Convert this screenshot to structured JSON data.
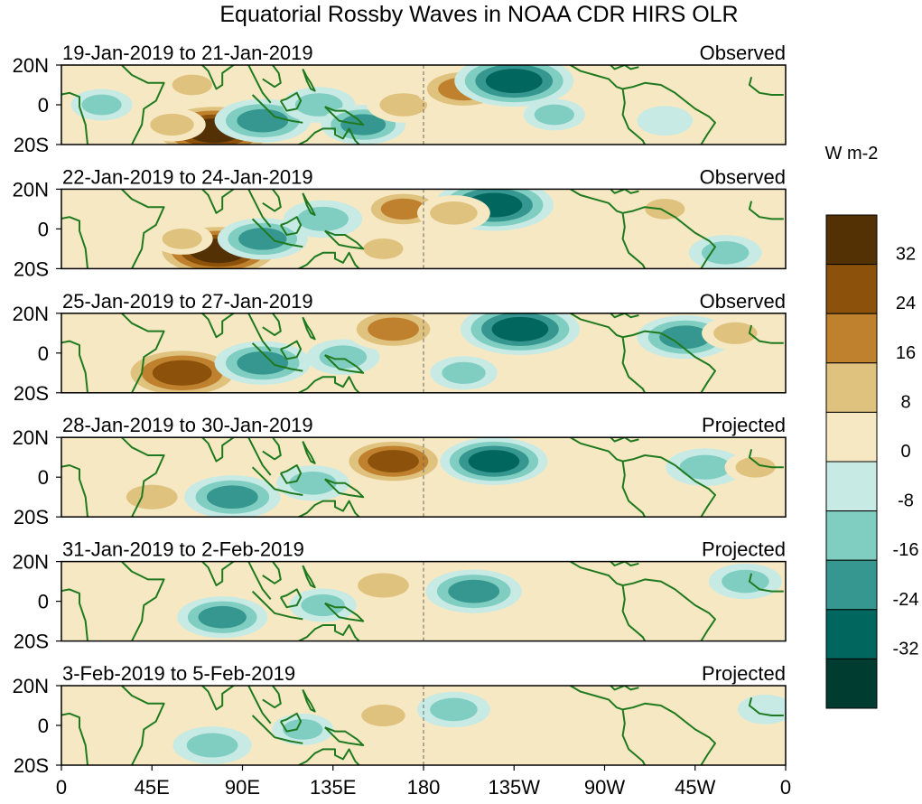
{
  "chart_data": {
    "type": "heatmap",
    "title": "Equatorial Rossby Waves in NOAA CDR HIRS OLR",
    "colorbar_label": "W m-2",
    "x_ticks": [
      "0",
      "45E",
      "90E",
      "135E",
      "180",
      "135W",
      "90W",
      "45W",
      "0"
    ],
    "x_range_deg": [
      0,
      360
    ],
    "y_ticks": [
      "20N",
      "0",
      "20S"
    ],
    "y_range_deg": [
      -20,
      20
    ],
    "reference_line_lon": 180,
    "colorbar": {
      "labels": [
        "32",
        "24",
        "16",
        "8",
        "0",
        "-8",
        "-16",
        "-24",
        "-32"
      ],
      "levels": [
        32,
        24,
        16,
        8,
        0,
        -8,
        -16,
        -24,
        -32
      ],
      "colors": [
        "#543005",
        "#8c510a",
        "#bf812d",
        "#dfc27d",
        "#f6e8c3",
        "#c7eae5",
        "#80cdc1",
        "#35978f",
        "#01665e",
        "#003c30"
      ]
    },
    "panels": [
      {
        "date_range": "19-Jan-2019 to 21-Jan-2019",
        "status": "Observed",
        "anomalies": [
          {
            "lon": 76,
            "lat": -13,
            "value": 34
          },
          {
            "lon": 55,
            "lat": -10,
            "value": 12
          },
          {
            "lon": 65,
            "lat": 10,
            "value": 10
          },
          {
            "lon": 100,
            "lat": -8,
            "value": -22
          },
          {
            "lon": 128,
            "lat": 0,
            "value": -14
          },
          {
            "lon": 150,
            "lat": -10,
            "value": -18
          },
          {
            "lon": 170,
            "lat": 0,
            "value": 14
          },
          {
            "lon": 200,
            "lat": 8,
            "value": 22
          },
          {
            "lon": 225,
            "lat": 12,
            "value": -30
          },
          {
            "lon": 245,
            "lat": -5,
            "value": -10
          },
          {
            "lon": 300,
            "lat": -8,
            "value": -8
          },
          {
            "lon": 20,
            "lat": 0,
            "value": -10
          }
        ]
      },
      {
        "date_range": "22-Jan-2019 to 24-Jan-2019",
        "status": "Observed",
        "anomalies": [
          {
            "lon": 78,
            "lat": -11,
            "value": 34
          },
          {
            "lon": 60,
            "lat": -5,
            "value": 10
          },
          {
            "lon": 100,
            "lat": -5,
            "value": -20
          },
          {
            "lon": 130,
            "lat": 5,
            "value": -16
          },
          {
            "lon": 170,
            "lat": 10,
            "value": 18
          },
          {
            "lon": 160,
            "lat": -10,
            "value": 10
          },
          {
            "lon": 215,
            "lat": 12,
            "value": -30
          },
          {
            "lon": 195,
            "lat": 8,
            "value": 14
          },
          {
            "lon": 300,
            "lat": 10,
            "value": 10
          },
          {
            "lon": 330,
            "lat": -12,
            "value": -14
          }
        ]
      },
      {
        "date_range": "25-Jan-2019 to 27-Jan-2019",
        "status": "Observed",
        "anomalies": [
          {
            "lon": 60,
            "lat": -10,
            "value": 32
          },
          {
            "lon": 100,
            "lat": -5,
            "value": -22
          },
          {
            "lon": 140,
            "lat": -2,
            "value": -14
          },
          {
            "lon": 165,
            "lat": 12,
            "value": 22
          },
          {
            "lon": 200,
            "lat": -10,
            "value": -12
          },
          {
            "lon": 228,
            "lat": 12,
            "value": -30
          },
          {
            "lon": 310,
            "lat": 8,
            "value": -22
          },
          {
            "lon": 335,
            "lat": 10,
            "value": 12
          }
        ]
      },
      {
        "date_range": "28-Jan-2019 to 30-Jan-2019",
        "status": "Projected",
        "anomalies": [
          {
            "lon": 45,
            "lat": -10,
            "value": 16
          },
          {
            "lon": 85,
            "lat": -10,
            "value": -22
          },
          {
            "lon": 125,
            "lat": -3,
            "value": -14
          },
          {
            "lon": 165,
            "lat": 8,
            "value": 26
          },
          {
            "lon": 215,
            "lat": 8,
            "value": -26
          },
          {
            "lon": 250,
            "lat": -10,
            "value": 8
          },
          {
            "lon": 320,
            "lat": 5,
            "value": -16
          },
          {
            "lon": 345,
            "lat": 5,
            "value": 10
          }
        ]
      },
      {
        "date_range": "31-Jan-2019 to 2-Feb-2019",
        "status": "Projected",
        "anomalies": [
          {
            "lon": 80,
            "lat": -8,
            "value": -20
          },
          {
            "lon": 130,
            "lat": -2,
            "value": -12
          },
          {
            "lon": 160,
            "lat": 8,
            "value": 16
          },
          {
            "lon": 205,
            "lat": 5,
            "value": -22
          },
          {
            "lon": 260,
            "lat": 5,
            "value": 6
          },
          {
            "lon": 340,
            "lat": 10,
            "value": -14
          },
          {
            "lon": 30,
            "lat": 5,
            "value": 6
          }
        ]
      },
      {
        "date_range": "3-Feb-2019 to 5-Feb-2019",
        "status": "Projected",
        "anomalies": [
          {
            "lon": 75,
            "lat": -10,
            "value": -16
          },
          {
            "lon": 120,
            "lat": -2,
            "value": -10
          },
          {
            "lon": 160,
            "lat": 5,
            "value": 12
          },
          {
            "lon": 195,
            "lat": 8,
            "value": -14
          },
          {
            "lon": 35,
            "lat": 5,
            "value": 6
          },
          {
            "lon": 230,
            "lat": -10,
            "value": 6
          },
          {
            "lon": 350,
            "lat": 8,
            "value": -8
          }
        ]
      }
    ]
  }
}
